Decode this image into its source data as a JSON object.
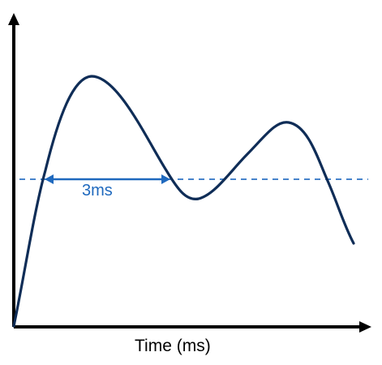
{
  "diagram": {
    "x_axis_label": "Time (ms)",
    "measure_label": "3ms",
    "colors": {
      "axis": "#000000",
      "curve": "#0f2d57",
      "threshold": "#2f73c4",
      "measure": "#1f69be"
    }
  }
}
